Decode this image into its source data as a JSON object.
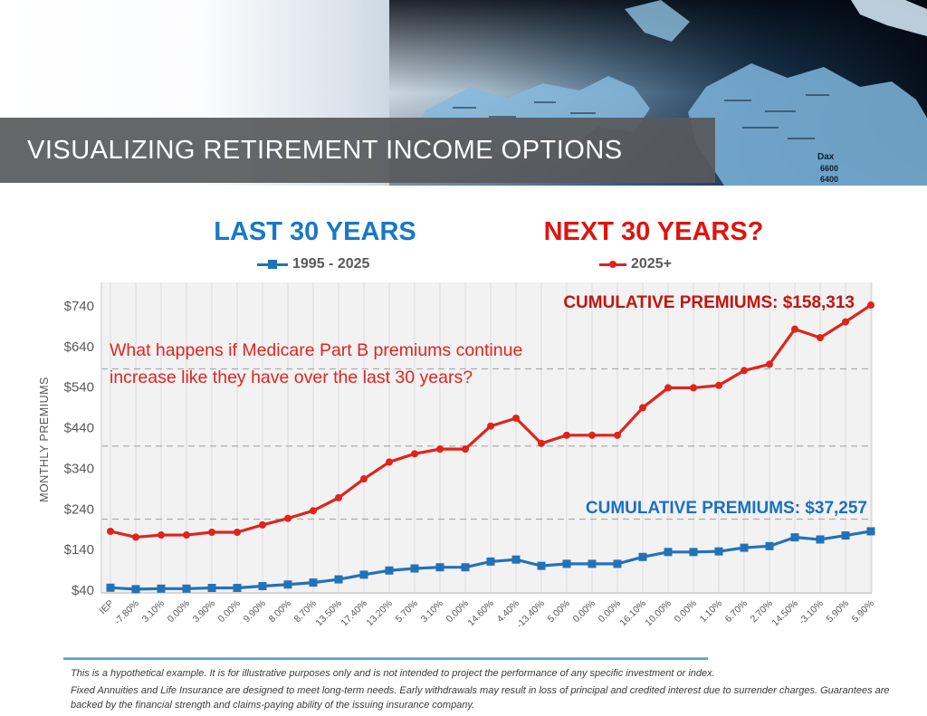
{
  "slide": {
    "title": "VISUALIZING RETIREMENT INCOME OPTIONS"
  },
  "banner": {
    "photo_texts": [
      "Dax",
      "6600",
      "6400"
    ]
  },
  "columns": {
    "left": {
      "title": "LAST 30 YEARS",
      "legend": "1995 - 2025"
    },
    "right": {
      "title": "NEXT 30 YEARS?",
      "legend": "2025+"
    }
  },
  "annotations": {
    "question_lines": [
      "What happens if Medicare Part B premiums continue",
      "increase like they have over the last 30 years?"
    ],
    "red_cumulative": "CUMULATIVE PREMIUMS: $158,313",
    "blue_cumulative": "CUMULATIVE PREMIUMS: $37,257"
  },
  "colors": {
    "blue": "#2272B9",
    "red": "#E0231C",
    "blue_title": "#1878C8",
    "red_title": "#DE150D",
    "red_label": "#C31410",
    "blue_label": "#1C70BE",
    "question_red": "#E02420",
    "axis_text": "#595959",
    "grid": "#DCDCDC",
    "dashed": "#ADADAD",
    "axis_line": "#C9C9C9",
    "plot_bg": "#F2F2F2",
    "divider": "#57A4C4",
    "title_bar_bg": "#58595B"
  },
  "chart_data": {
    "type": "line",
    "title": "",
    "xlabel": "",
    "ylabel": "MONTHLY PREMIUMS",
    "ylim": [
      40,
      800
    ],
    "grid": "vertical light gridlines + three dashed horizontal lines",
    "legend_position": "top (split under the two column titles)",
    "y_ticks": [
      "$740",
      "$640",
      "$540",
      "$440",
      "$340",
      "$240",
      "$140",
      "$40"
    ],
    "y_tick_values": [
      740,
      640,
      540,
      440,
      340,
      240,
      140,
      40
    ],
    "dashed_gridline_values": [
      585,
      395,
      215
    ],
    "categories": [
      "IEP",
      "-7.80%",
      "3.10%",
      "0.00%",
      "3.90%",
      "0.00%",
      "9.90%",
      "8.00%",
      "8.70%",
      "13.50%",
      "17.40%",
      "13.20%",
      "5.70%",
      "3.10%",
      "0.00%",
      "14.60%",
      "4.40%",
      "-13.40%",
      "5.00%",
      "0.00%",
      "0.00%",
      "16.10%",
      "10.00%",
      "0.00%",
      "1.10%",
      "6.70%",
      "2.70%",
      "14.50%",
      "-3.10%",
      "5.90%",
      "5.90%"
    ],
    "series": [
      {
        "name": "1995 - 2025",
        "color": "#2272B9",
        "marker": "square",
        "values": [
          46.1,
          42.5,
          43.8,
          43.8,
          45.5,
          45.5,
          50.0,
          54.0,
          58.7,
          66.6,
          78.2,
          88.5,
          93.5,
          96.4,
          96.4,
          110.5,
          115.4,
          99.9,
          104.9,
          104.9,
          104.9,
          121.8,
          134.0,
          134.0,
          135.5,
          144.6,
          148.5,
          170.1,
          164.9,
          174.7,
          185.0
        ],
        "cumulative_label": "CUMULATIVE PREMIUMS: $37,257"
      },
      {
        "name": "2025+",
        "color": "#E0231C",
        "marker": "circle",
        "values": [
          185.0,
          170.6,
          175.9,
          175.9,
          182.7,
          182.7,
          200.8,
          216.9,
          235.7,
          267.6,
          314.1,
          355.6,
          375.9,
          387.5,
          387.5,
          444.1,
          463.6,
          401.5,
          421.6,
          421.6,
          421.6,
          489.4,
          538.4,
          538.4,
          544.3,
          580.8,
          596.4,
          682.9,
          661.8,
          700.8,
          742.1
        ],
        "cumulative_label": "CUMULATIVE PREMIUMS: $158,313"
      }
    ]
  },
  "footer": {
    "line1": "This is a hypothetical example. It is for illustrative purposes only and is not intended to project the performance of any specific investment or index.",
    "line2": "Fixed Annuities and Life Insurance are designed to meet long-term needs. Early withdrawals may result in loss of principal and credited interest due to surrender charges. Guarantees are backed by the financial strength and claims-paying ability of the issuing insurance company."
  }
}
